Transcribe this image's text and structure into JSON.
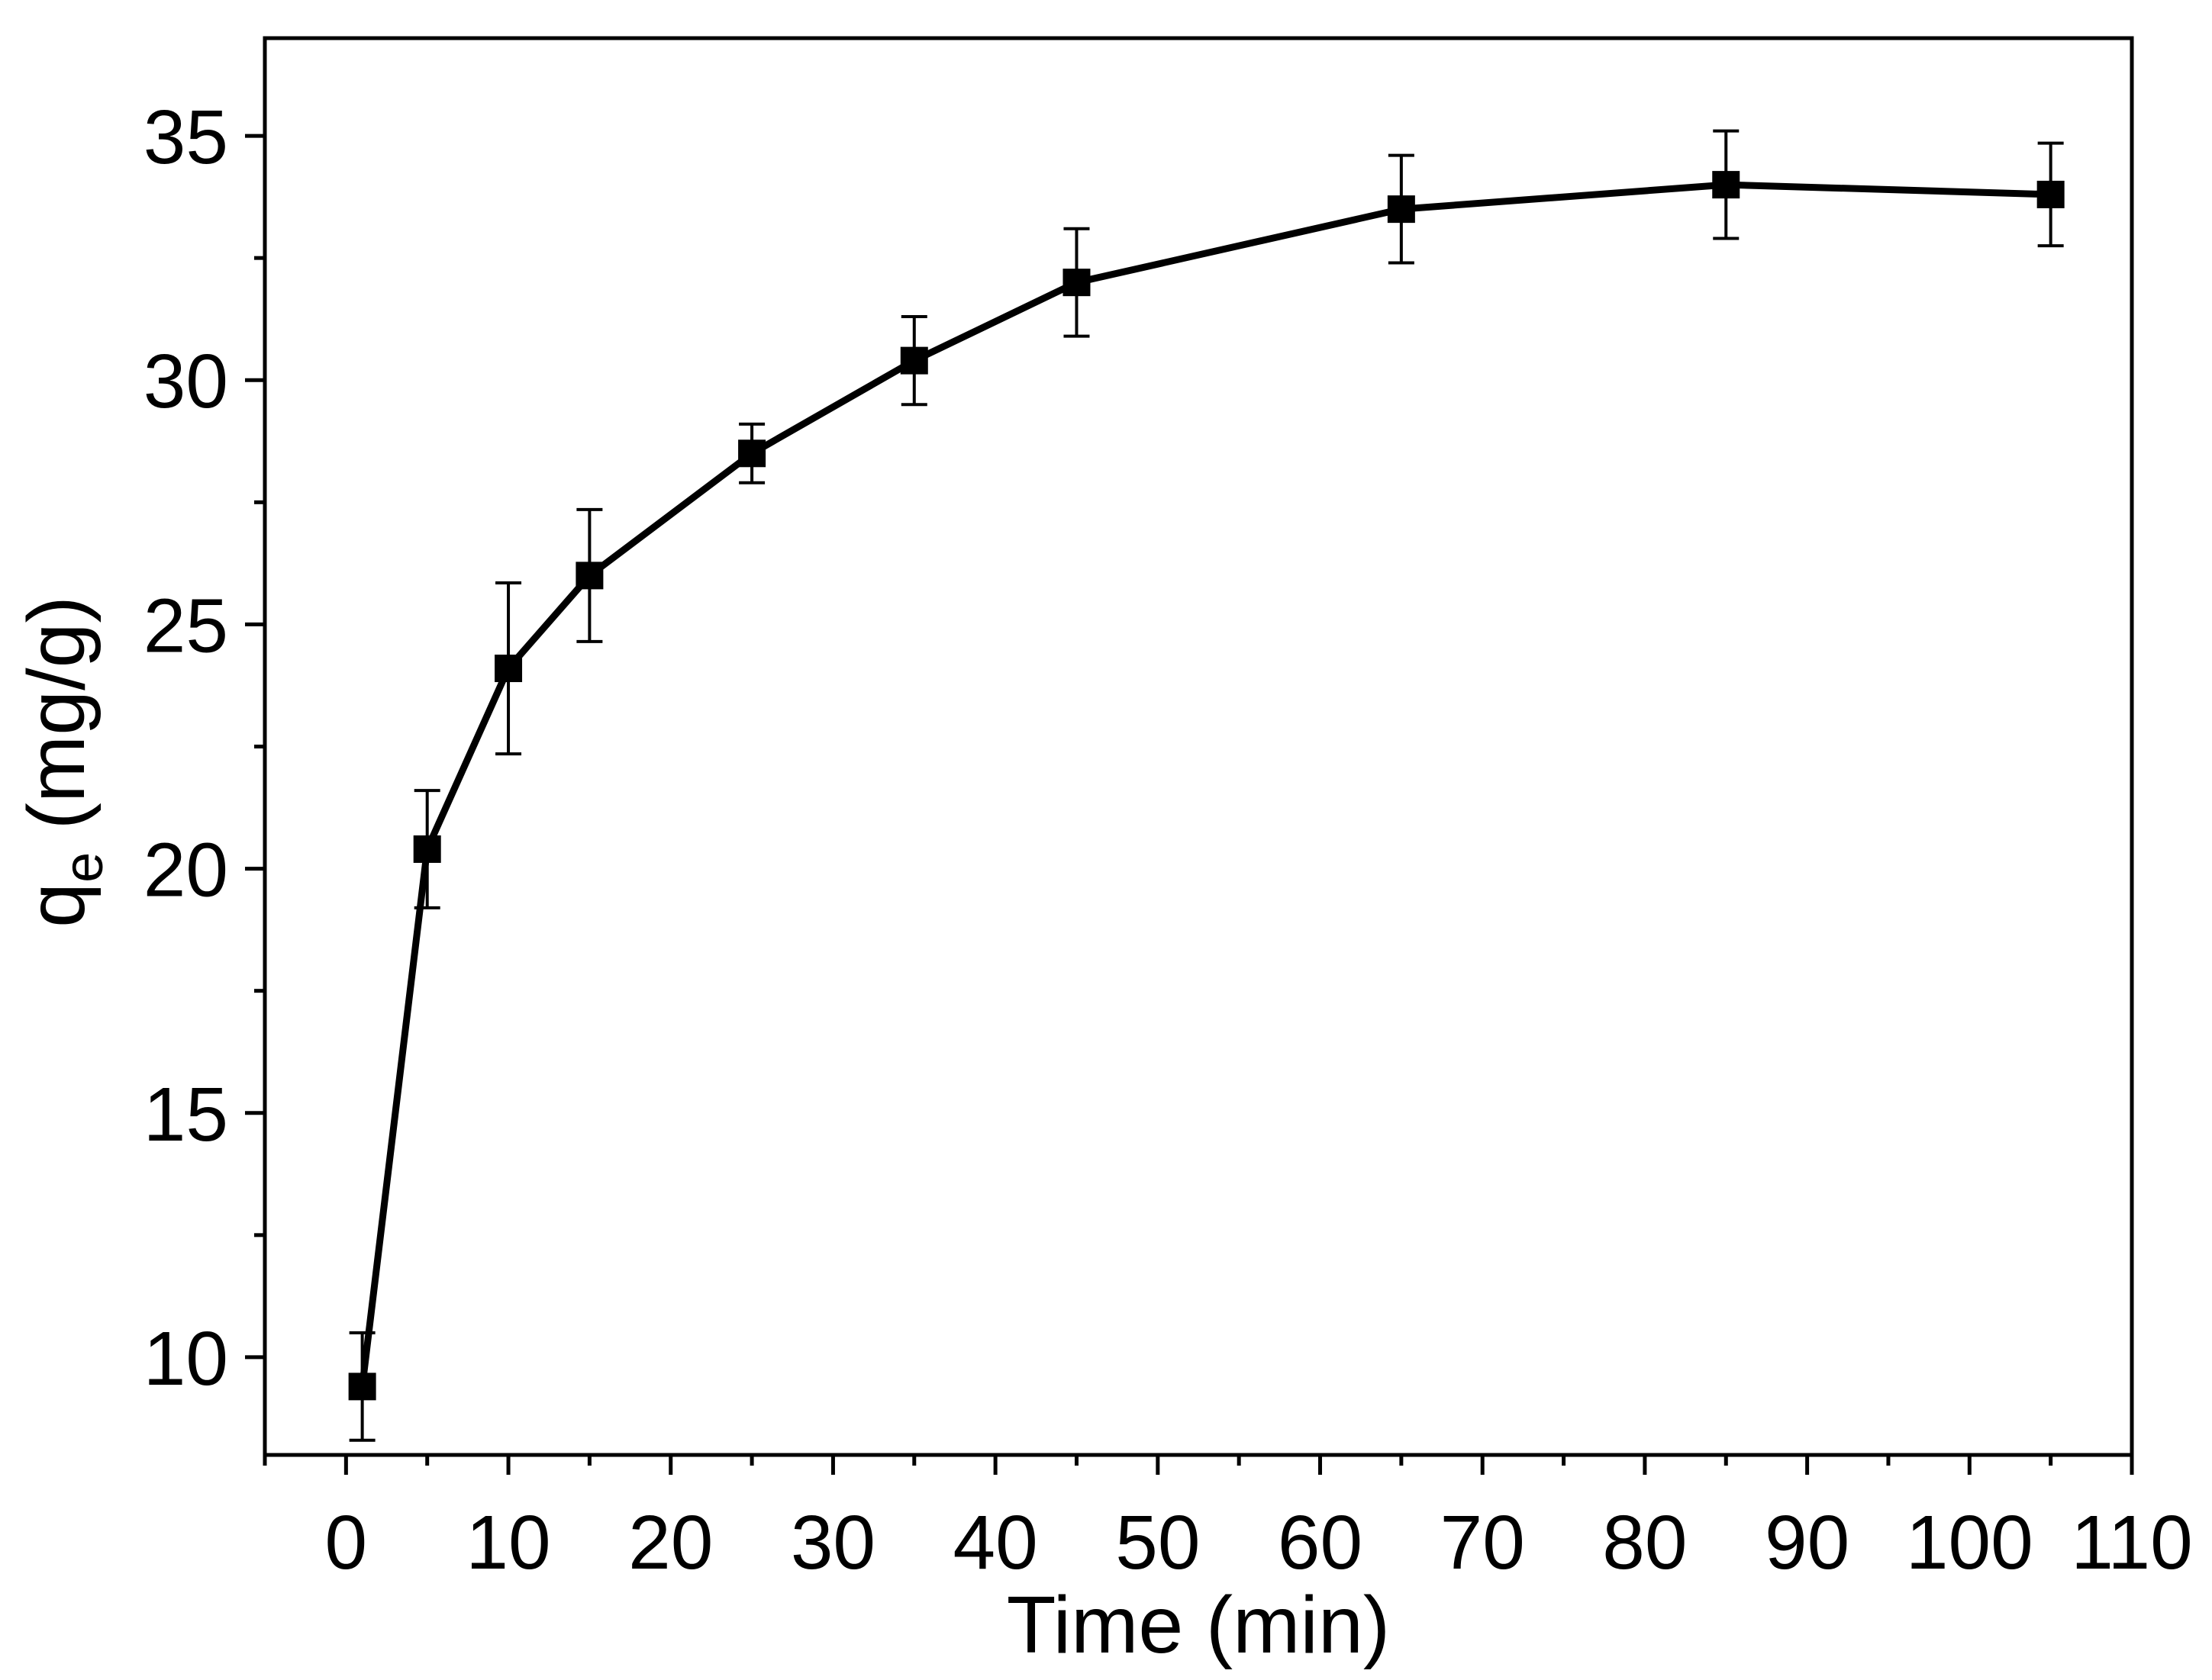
{
  "chart_data": {
    "type": "line",
    "xlabel": "Time (min)",
    "ylabel": {
      "main": "q",
      "sub": "e",
      "unit": " (mg/g)"
    },
    "xlim": [
      -5,
      110
    ],
    "ylim": [
      8,
      37
    ],
    "xticks": [
      0,
      10,
      20,
      30,
      40,
      50,
      60,
      70,
      80,
      90,
      100,
      110
    ],
    "xminor": [
      -5,
      5,
      15,
      25,
      35,
      45,
      55,
      65,
      75,
      85,
      95,
      105
    ],
    "yticks": [
      10,
      15,
      20,
      25,
      30,
      35
    ],
    "yminor": [
      12.5,
      17.5,
      22.5,
      27.5,
      32.5
    ],
    "grid": false,
    "series": [
      {
        "marker": "square",
        "color": "#000000",
        "points": [
          {
            "x": 1,
            "y": 9.4,
            "err": 1.1
          },
          {
            "x": 5,
            "y": 20.4,
            "err": 1.2
          },
          {
            "x": 10,
            "y": 24.1,
            "err": 1.75
          },
          {
            "x": 15,
            "y": 26.0,
            "err": 1.35
          },
          {
            "x": 25,
            "y": 28.5,
            "err": 0.6
          },
          {
            "x": 35,
            "y": 30.4,
            "err": 0.9
          },
          {
            "x": 45,
            "y": 32.0,
            "err": 1.1
          },
          {
            "x": 65,
            "y": 33.5,
            "err": 1.1
          },
          {
            "x": 85,
            "y": 34.0,
            "err": 1.1
          },
          {
            "x": 105,
            "y": 33.8,
            "err": 1.05
          }
        ]
      }
    ]
  }
}
